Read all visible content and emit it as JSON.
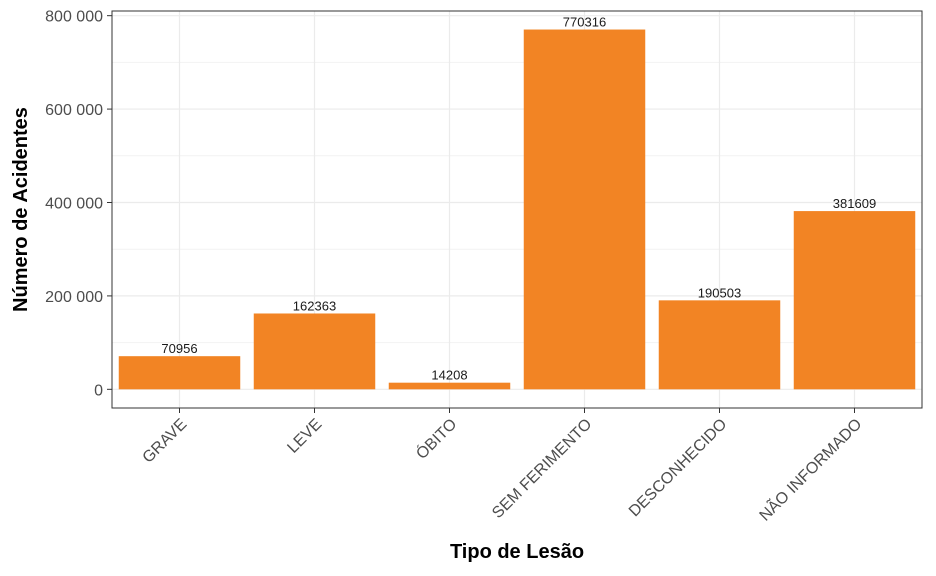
{
  "chart_data": {
    "type": "bar",
    "title": "",
    "xlabel": "Tipo de Lesão",
    "ylabel": "Número de Acidentes",
    "categories": [
      "GRAVE",
      "LEVE",
      "ÓBITO",
      "SEM FERIMENTO",
      "DESCONHECIDO",
      "NÃO INFORMADO"
    ],
    "values": [
      70956,
      162363,
      14208,
      770316,
      190503,
      381609
    ],
    "data_labels": [
      "70956",
      "162363",
      "14208",
      "770316",
      "190503",
      "381609"
    ],
    "ylim": [
      -40000,
      810000
    ],
    "yticks": [
      0,
      200000,
      400000,
      600000,
      800000
    ],
    "ytick_labels": [
      "0",
      "200 000",
      "400 000",
      "600 000",
      "800 000"
    ],
    "grid": true,
    "legend": "none",
    "colors": {
      "bar": "#f28424",
      "grid_major": "#ebebeb",
      "grid_minor": "#f2f2f2",
      "panel_border": "#333333"
    }
  }
}
